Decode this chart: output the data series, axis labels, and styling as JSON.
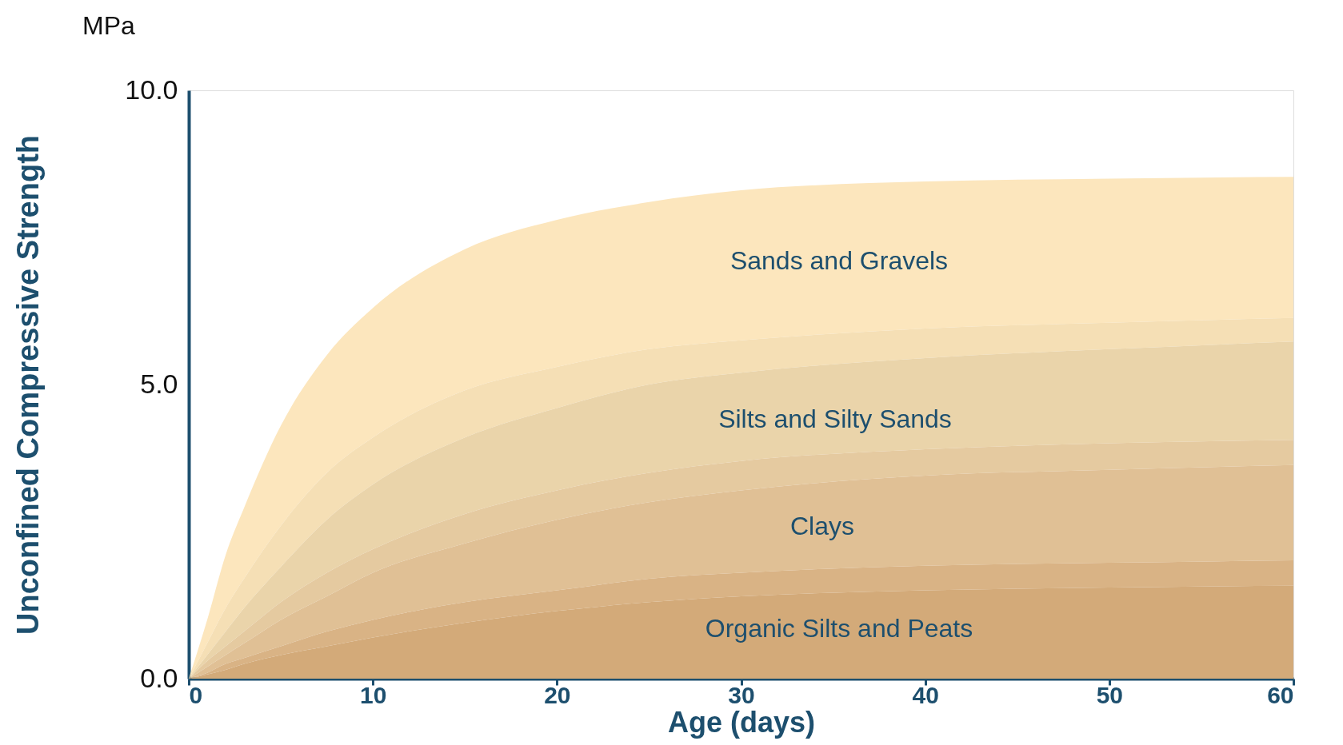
{
  "chart_data": {
    "type": "area",
    "xlabel": "Age (days)",
    "ylabel": "Unconfined Compressive Strength",
    "x": [
      0,
      1,
      2,
      3,
      5,
      7.5,
      10,
      15,
      20,
      25,
      30,
      40,
      50,
      60
    ],
    "series": [
      {
        "color": "#fce6bd",
        "values": [
          0,
          1.0,
          2.1,
          2.9,
          4.3,
          5.5,
          6.3,
          7.3,
          7.8,
          8.1,
          8.3,
          8.45,
          8.5,
          8.53
        ]
      },
      {
        "color": "#f5dfb5",
        "values": [
          0,
          0.6,
          1.2,
          1.7,
          2.6,
          3.5,
          4.1,
          4.9,
          5.3,
          5.6,
          5.75,
          5.95,
          6.05,
          6.13
        ]
      },
      {
        "color": "#ead4aa",
        "values": [
          0,
          0.4,
          0.8,
          1.2,
          1.9,
          2.7,
          3.3,
          4.1,
          4.6,
          5.0,
          5.2,
          5.45,
          5.6,
          5.73
        ]
      },
      {
        "color": "#e5caa0",
        "values": [
          0,
          0.3,
          0.55,
          0.8,
          1.3,
          1.8,
          2.2,
          2.8,
          3.2,
          3.5,
          3.7,
          3.9,
          4.0,
          4.06
        ]
      },
      {
        "color": "#e0c095",
        "values": [
          0,
          0.2,
          0.4,
          0.6,
          1.0,
          1.4,
          1.8,
          2.3,
          2.7,
          3.0,
          3.2,
          3.45,
          3.55,
          3.63
        ]
      },
      {
        "color": "#d9b385",
        "values": [
          0,
          0.1,
          0.25,
          0.35,
          0.55,
          0.8,
          1.0,
          1.3,
          1.5,
          1.7,
          1.8,
          1.92,
          1.97,
          2.01
        ]
      },
      {
        "color": "#d3aa79",
        "values": [
          0,
          0.07,
          0.15,
          0.25,
          0.4,
          0.55,
          0.7,
          0.95,
          1.15,
          1.3,
          1.4,
          1.5,
          1.55,
          1.58
        ]
      }
    ],
    "xlim": [
      0,
      60
    ],
    "xticks": [
      0,
      10,
      20,
      30,
      40,
      50,
      60
    ],
    "ylim": [
      0,
      10
    ],
    "yticks": [
      {
        "value": 0,
        "label": "0.0"
      },
      {
        "value": 5,
        "label": "5.0"
      },
      {
        "value": 10,
        "label": "10.0"
      }
    ],
    "grid": false,
    "annotations": [
      "MPa",
      "Sands and Gravels",
      "Silts and Silty Sands",
      "Clays",
      "Organic Silts and Peats"
    ]
  }
}
